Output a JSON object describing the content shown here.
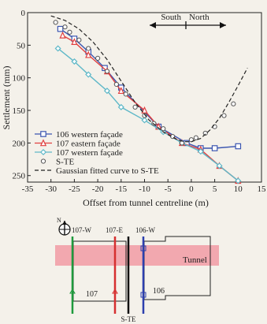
{
  "chart_data": {
    "type": "line",
    "xlabel": "Offset from tunnel centreline (m)",
    "ylabel": "Settlement (mm)",
    "xlim": [
      -35,
      15
    ],
    "ylim": [
      0,
      260
    ],
    "x_ticks": [
      "-35",
      "-30",
      "-25",
      "-20",
      "-15",
      "-10",
      "-5",
      "0",
      "5",
      "10",
      "15"
    ],
    "y_ticks": [
      "0",
      "50",
      "100",
      "150",
      "200",
      "250"
    ],
    "y_inverted": true,
    "grid": false,
    "legend_position": "bottom-left",
    "direction_labels": {
      "south": "South",
      "north": "North"
    },
    "series": [
      {
        "name": "106 western façade",
        "color": "#3a55b0",
        "marker": "square",
        "x": [
          -28,
          -25,
          -22,
          -18.5,
          -15,
          -7,
          -1,
          2,
          5,
          10
        ],
        "y": [
          25,
          40,
          60,
          85,
          115,
          175,
          200,
          208,
          208,
          205
        ]
      },
      {
        "name": "107 eastern façade",
        "color": "#e04040",
        "marker": "triangle",
        "x": [
          -27.5,
          -25,
          -22,
          -18,
          -15,
          -10,
          -7,
          -2,
          2,
          6,
          10
        ],
        "y": [
          35,
          45,
          65,
          90,
          120,
          150,
          175,
          200,
          210,
          235,
          258
        ]
      },
      {
        "name": "107 western façade",
        "color": "#5fb8c8",
        "marker": "diamond",
        "x": [
          -28.5,
          -25,
          -22,
          -18,
          -15,
          -10,
          -6,
          -2,
          2,
          6,
          10
        ],
        "y": [
          55,
          75,
          95,
          120,
          145,
          165,
          183,
          200,
          213,
          235,
          258
        ]
      },
      {
        "name": "S-TE",
        "color": "#555555",
        "marker": "circle",
        "dashed": false,
        "points_only": true,
        "x": [
          -29,
          -27,
          -26,
          -24,
          -22,
          -20,
          -18,
          -16,
          -14,
          -12,
          -10,
          -8,
          -6,
          -4,
          -2,
          0,
          1,
          3,
          5,
          7,
          9
        ],
        "y": [
          15,
          22,
          30,
          42,
          55,
          70,
          90,
          110,
          125,
          145,
          158,
          170,
          178,
          190,
          200,
          195,
          192,
          185,
          175,
          158,
          140
        ]
      },
      {
        "name": "Gaussian fitted curve to S-TE",
        "color": "#222222",
        "dashed": true,
        "line_only": true,
        "x": [
          -30,
          -27,
          -24,
          -21,
          -18,
          -15,
          -12,
          -9,
          -6,
          -3,
          -1.5,
          0,
          2,
          4,
          6,
          8,
          10,
          12
        ],
        "y": [
          5,
          12,
          25,
          45,
          72,
          105,
          138,
          165,
          183,
          195,
          198,
          198,
          193,
          180,
          162,
          138,
          112,
          85
        ]
      }
    ]
  },
  "plan": {
    "labels": {
      "w107": "107-W",
      "e107": "107-E",
      "w106": "106-W",
      "tunnel": "Tunnel",
      "b107": "107",
      "b106": "106",
      "ste": "S-TE",
      "north": "N"
    },
    "colors": {
      "tunnel": "#f2a0a8",
      "w107": "#1e9a3c",
      "e107": "#d63030",
      "ste": "#111111",
      "w106": "#2c3fae"
    }
  }
}
